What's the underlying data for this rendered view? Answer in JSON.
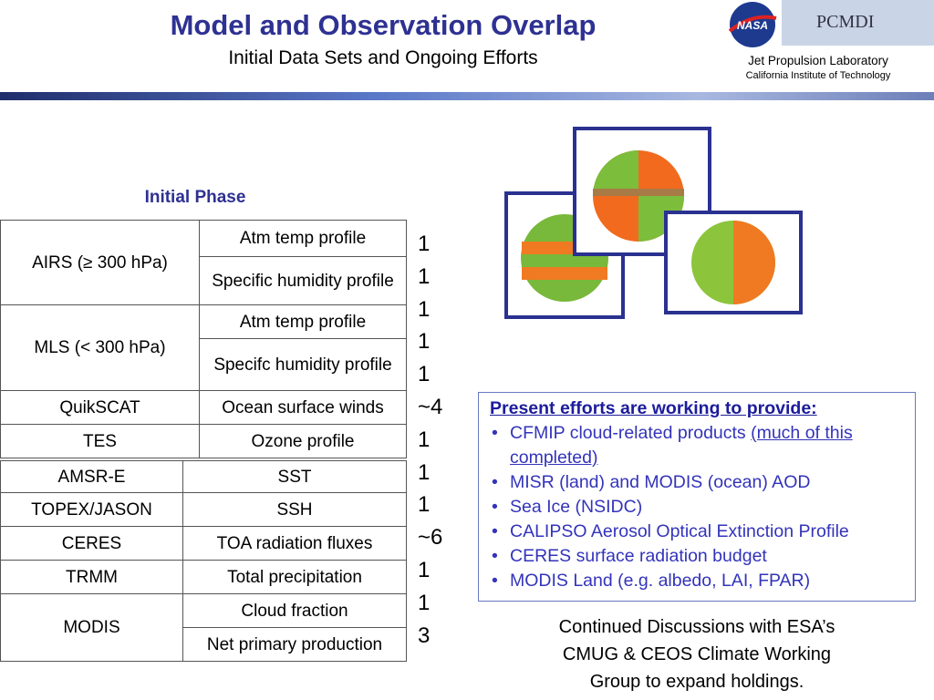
{
  "header": {
    "title": "Model and Observation Overlap",
    "subtitle": "Initial Data Sets and Ongoing Efforts",
    "logo_nasa": "NASA",
    "logo_pcmdi": "PCMDI",
    "org": "Jet Propulsion Laboratory",
    "org_sub": "California Institute of Technology"
  },
  "table": {
    "caption": "Initial Phase",
    "sections": [
      {
        "groups": [
          {
            "instrument": "AIRS (≥  300 hPa)",
            "products": [
              "Atm temp profile",
              "Specific humidity profile"
            ]
          },
          {
            "instrument": "MLS (< 300 hPa)",
            "products": [
              "Atm temp profile",
              "Specifc humidity profile"
            ]
          },
          {
            "instrument": "QuikSCAT",
            "products": [
              "Ocean surface winds"
            ]
          },
          {
            "instrument": "TES",
            "products": [
              "Ozone profile"
            ]
          }
        ]
      },
      {
        "groups": [
          {
            "instrument": "AMSR-E",
            "products": [
              "SST"
            ]
          },
          {
            "instrument": "TOPEX/JASON",
            "products": [
              "SSH"
            ]
          },
          {
            "instrument": "CERES",
            "products": [
              "TOA radiation fluxes"
            ]
          },
          {
            "instrument": "TRMM",
            "products": [
              "Total precipitation"
            ]
          },
          {
            "instrument": "MODIS",
            "products": [
              "Cloud fraction",
              "Net primary production"
            ]
          }
        ]
      }
    ],
    "counts": [
      "1",
      "1",
      "1",
      "1",
      "1",
      "~4",
      "1",
      "1",
      "1",
      "~6",
      "1",
      "1",
      "3"
    ]
  },
  "efforts": {
    "heading": "Present efforts are working to provide:",
    "items": [
      {
        "text": "CFMIP cloud-related products",
        "note": "(much of this completed)"
      },
      {
        "text": "MISR (land) and MODIS (ocean) AOD"
      },
      {
        "text": "Sea Ice (NSIDC)"
      },
      {
        "text": "CALIPSO Aerosol Optical Extinction Profile"
      },
      {
        "text": "CERES surface radiation budget"
      },
      {
        "text": "MODIS Land (e.g. albedo, LAI, FPAR)"
      }
    ]
  },
  "caption": "Continued Discussions with ESA’s CMUG & CEOS Climate Working Group to expand holdings."
}
